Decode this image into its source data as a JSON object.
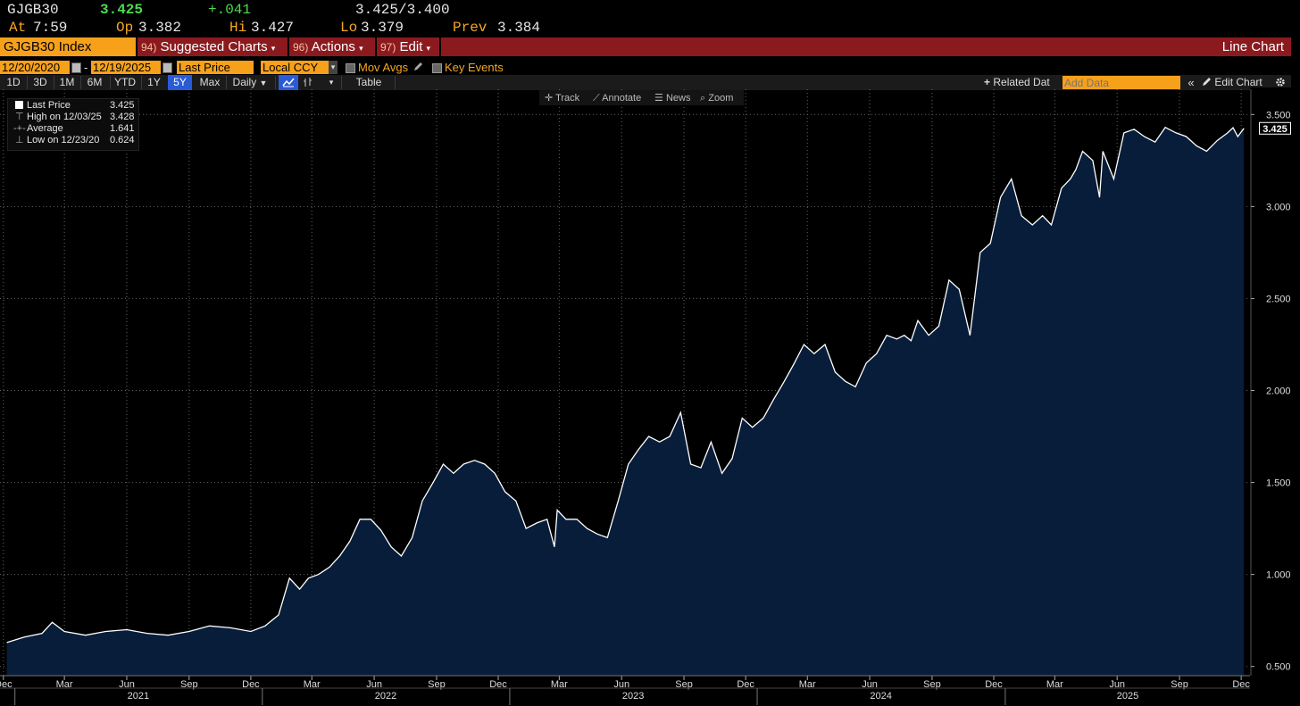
{
  "quote": {
    "ticker": "GJGB30",
    "last": "3.425",
    "change": "+.041",
    "bid_ask": "3.425/3.400",
    "at_label": "At",
    "at_time": "7:59",
    "open_label": "Op",
    "open": "3.382",
    "high_label": "Hi",
    "high": "3.427",
    "low_label": "Lo",
    "low": "3.379",
    "prev_label": "Prev",
    "prev": "3.384"
  },
  "titlebar": {
    "security": "GJGB30 Index",
    "suggested_num": "94)",
    "suggested": "Suggested Charts",
    "actions_num": "96)",
    "actions": "Actions",
    "edit_num": "97)",
    "edit": "Edit",
    "chart_type": "Line Chart"
  },
  "controls": {
    "start_date": "12/20/2020",
    "date_sep": "-",
    "end_date": "12/19/2025",
    "field": "Last Price",
    "currency": "Local CCY",
    "mov_avgs": "Mov Avgs",
    "key_events": "Key Events"
  },
  "range": {
    "buttons": [
      "1D",
      "3D",
      "1M",
      "6M",
      "YTD",
      "1Y",
      "5Y",
      "Max"
    ],
    "selected": "5Y",
    "periodicity": "Daily",
    "table": "Table",
    "related": "Related Dat",
    "add_data_placeholder": "Add Data",
    "edit_chart": "Edit Chart"
  },
  "tools": {
    "track": "Track",
    "annotate": "Annotate",
    "news": "News",
    "zoom": "Zoom"
  },
  "legend": {
    "last_label": "Last Price",
    "last_value": "3.425",
    "high_label": "High on 12/03/25",
    "high_value": "3.428",
    "avg_label": "Average",
    "avg_value": "1.641",
    "low_label": "Low on 12/23/20",
    "low_value": "0.624"
  },
  "colors": {
    "accent": "#f7a11a",
    "title_bar": "#8b1a1f",
    "line": "#ffffff",
    "area_fill": "#071d3a",
    "up": "#4ddb4d",
    "selected": "#2a5bd7"
  },
  "icons": {
    "calendar": "calendar-icon",
    "pencil": "pencil-icon",
    "line_chart": "line-chart-icon",
    "bar_chart": "bar-chart-icon",
    "gear": "gear-icon"
  },
  "chart_data": {
    "type": "area",
    "series": [
      {
        "name": "Last Price",
        "x": [
          "2020-12-20",
          "2021-01-15",
          "2021-02-10",
          "2021-02-25",
          "2021-03-15",
          "2021-04-15",
          "2021-05-15",
          "2021-06-15",
          "2021-07-15",
          "2021-08-15",
          "2021-09-15",
          "2021-10-15",
          "2021-11-15",
          "2021-12-15",
          "2022-01-05",
          "2022-01-25",
          "2022-02-10",
          "2022-02-25",
          "2022-03-10",
          "2022-03-25",
          "2022-04-10",
          "2022-04-25",
          "2022-05-10",
          "2022-05-25",
          "2022-06-10",
          "2022-06-25",
          "2022-07-10",
          "2022-07-25",
          "2022-08-10",
          "2022-08-25",
          "2022-09-10",
          "2022-09-25",
          "2022-10-10",
          "2022-10-25",
          "2022-11-10",
          "2022-11-25",
          "2022-12-10",
          "2022-12-25",
          "2023-01-10",
          "2023-01-25",
          "2023-02-10",
          "2023-02-25",
          "2023-03-08",
          "2023-03-12",
          "2023-03-25",
          "2023-04-10",
          "2023-04-25",
          "2023-05-10",
          "2023-05-25",
          "2023-06-10",
          "2023-06-25",
          "2023-07-10",
          "2023-07-25",
          "2023-08-10",
          "2023-08-25",
          "2023-09-10",
          "2023-09-25",
          "2023-10-10",
          "2023-10-25",
          "2023-11-10",
          "2023-11-25",
          "2023-12-10",
          "2023-12-25",
          "2024-01-10",
          "2024-01-25",
          "2024-02-10",
          "2024-02-25",
          "2024-03-10",
          "2024-03-25",
          "2024-04-10",
          "2024-04-25",
          "2024-05-10",
          "2024-05-25",
          "2024-06-10",
          "2024-06-25",
          "2024-07-10",
          "2024-07-25",
          "2024-08-05",
          "2024-08-15",
          "2024-08-25",
          "2024-09-10",
          "2024-09-25",
          "2024-10-10",
          "2024-10-25",
          "2024-11-10",
          "2024-11-25",
          "2024-12-10",
          "2024-12-25",
          "2025-01-10",
          "2025-01-25",
          "2025-02-10",
          "2025-02-25",
          "2025-03-10",
          "2025-03-25",
          "2025-04-07",
          "2025-04-15",
          "2025-04-25",
          "2025-05-10",
          "2025-05-20",
          "2025-05-25",
          "2025-06-10",
          "2025-06-25",
          "2025-07-10",
          "2025-07-25",
          "2025-08-10",
          "2025-08-25",
          "2025-09-10",
          "2025-09-25",
          "2025-10-10",
          "2025-10-25",
          "2025-11-10",
          "2025-11-25",
          "2025-12-03",
          "2025-12-10",
          "2025-12-19"
        ],
        "values": [
          0.63,
          0.66,
          0.68,
          0.74,
          0.69,
          0.67,
          0.69,
          0.7,
          0.68,
          0.67,
          0.69,
          0.72,
          0.71,
          0.69,
          0.72,
          0.78,
          0.98,
          0.92,
          0.98,
          1.0,
          1.04,
          1.1,
          1.18,
          1.3,
          1.3,
          1.24,
          1.15,
          1.1,
          1.2,
          1.4,
          1.5,
          1.6,
          1.55,
          1.6,
          1.62,
          1.6,
          1.55,
          1.45,
          1.4,
          1.25,
          1.28,
          1.3,
          1.15,
          1.35,
          1.3,
          1.3,
          1.25,
          1.22,
          1.2,
          1.4,
          1.6,
          1.68,
          1.75,
          1.72,
          1.75,
          1.88,
          1.6,
          1.58,
          1.72,
          1.55,
          1.63,
          1.85,
          1.8,
          1.85,
          1.95,
          2.05,
          2.15,
          2.25,
          2.2,
          2.25,
          2.1,
          2.05,
          2.02,
          2.15,
          2.2,
          2.3,
          2.28,
          2.3,
          2.27,
          2.38,
          2.3,
          2.35,
          2.6,
          2.55,
          2.3,
          2.75,
          2.8,
          3.05,
          3.15,
          2.95,
          2.9,
          2.95,
          2.9,
          3.1,
          3.15,
          3.2,
          3.3,
          3.25,
          3.05,
          3.3,
          3.15,
          3.4,
          3.42,
          3.38,
          3.35,
          3.43,
          3.4,
          3.38,
          3.33,
          3.3,
          3.36,
          3.4,
          3.428,
          3.38,
          3.425
        ]
      }
    ],
    "x_tick_labels": [
      "Dec",
      "Mar",
      "Jun",
      "Sep",
      "Dec",
      "Mar",
      "Jun",
      "Sep",
      "Dec",
      "Mar",
      "Jun",
      "Sep",
      "Dec",
      "Mar",
      "Jun",
      "Sep",
      "Dec",
      "Mar",
      "Jun",
      "Sep",
      "Dec"
    ],
    "x_year_labels": [
      "2021",
      "2022",
      "2023",
      "2024",
      "2025"
    ],
    "y_ticks": [
      0.5,
      1.0,
      1.5,
      2.0,
      2.5,
      3.0,
      3.5
    ],
    "y_tick_labels": [
      "0.500",
      "1.000",
      "1.500",
      "2.000",
      "2.500",
      "3.000",
      "3.500"
    ],
    "last_value_label": "3.425",
    "ylim": [
      0.45,
      3.55
    ],
    "xlim": [
      "2020-12-10",
      "2025-12-28"
    ],
    "grid": true,
    "legend_position": "top-left"
  }
}
